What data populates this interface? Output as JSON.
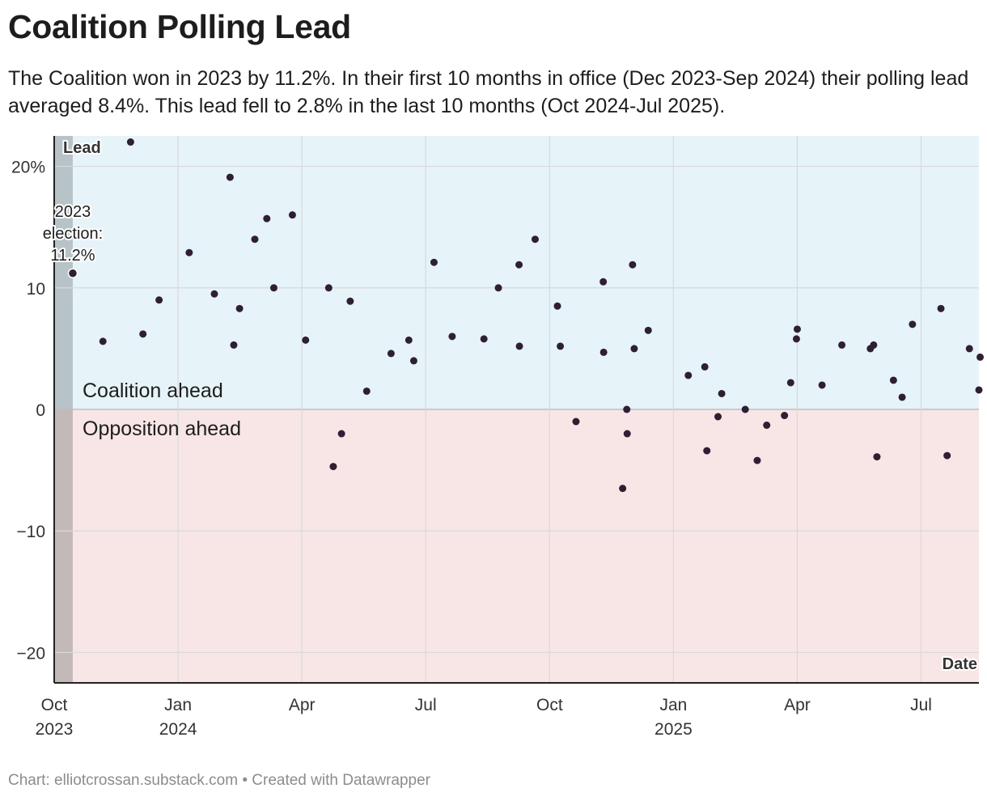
{
  "title": "Coalition Polling Lead",
  "subtitle": "The Coalition won in 2023 by 11.2%. In their first 10 months in office (Dec 2023-Sep 2024) their polling lead averaged 8.4%. This lead fell to 2.8% in the last 10 months (Oct 2024-Jul 2025).",
  "footer": {
    "source": "Chart: elliotcrossan.substack.com",
    "separator": "•",
    "credit": "Created with Datawrapper"
  },
  "colors": {
    "positive_band": "#e6f3f9",
    "negative_band": "#f8e6e6",
    "pre_election_band_top": "#b7c3c6",
    "pre_election_band_bottom": "#c4b9b9",
    "gridline": "#d9d9d9",
    "zero_line": "#bdbdbd",
    "axis": "#222222",
    "point": "#2e1f33"
  },
  "chart_data": {
    "type": "scatter",
    "title": "Coalition Polling Lead",
    "ylabel": "Lead",
    "xlabel": "Date",
    "x_unit": "months since Oct 2023",
    "xlim": [
      0,
      22.4
    ],
    "ylim": [
      -22.5,
      22.5
    ],
    "y_ticks": [
      {
        "value": 20,
        "label": "20%"
      },
      {
        "value": 10,
        "label": "10"
      },
      {
        "value": 0,
        "label": "0"
      },
      {
        "value": -10,
        "label": "−10"
      },
      {
        "value": -20,
        "label": "−20"
      }
    ],
    "x_ticks": [
      {
        "value": 0,
        "label": "Oct",
        "sublabel": "2023"
      },
      {
        "value": 3,
        "label": "Jan",
        "sublabel": "2024"
      },
      {
        "value": 6,
        "label": "Apr",
        "sublabel": ""
      },
      {
        "value": 9,
        "label": "Jul",
        "sublabel": ""
      },
      {
        "value": 12,
        "label": "Oct",
        "sublabel": ""
      },
      {
        "value": 15,
        "label": "Jan",
        "sublabel": "2025"
      },
      {
        "value": 18,
        "label": "Apr",
        "sublabel": ""
      },
      {
        "value": 21,
        "label": "Jul",
        "sublabel": ""
      }
    ],
    "regions": {
      "positive_label": "Coalition ahead",
      "negative_label": "Opposition ahead",
      "pre_election_end": 0.45
    },
    "annotation": {
      "lines": [
        "2023",
        "election:",
        "11.2%"
      ],
      "x": 0.45,
      "y": 11.2
    },
    "series": [
      {
        "name": "Polls",
        "points": [
          {
            "x": 0.45,
            "y": 11.2
          },
          {
            "x": 1.18,
            "y": 5.6
          },
          {
            "x": 1.85,
            "y": 22.0
          },
          {
            "x": 2.15,
            "y": 6.2
          },
          {
            "x": 2.54,
            "y": 9.0
          },
          {
            "x": 3.27,
            "y": 12.9
          },
          {
            "x": 3.88,
            "y": 9.5
          },
          {
            "x": 4.26,
            "y": 19.1
          },
          {
            "x": 4.35,
            "y": 5.3
          },
          {
            "x": 4.49,
            "y": 8.3
          },
          {
            "x": 4.86,
            "y": 14.0
          },
          {
            "x": 5.15,
            "y": 15.7
          },
          {
            "x": 5.32,
            "y": 10.0
          },
          {
            "x": 5.77,
            "y": 16.0
          },
          {
            "x": 6.09,
            "y": 5.7
          },
          {
            "x": 6.65,
            "y": 10.0
          },
          {
            "x": 6.76,
            "y": -4.7
          },
          {
            "x": 6.96,
            "y": -2.0
          },
          {
            "x": 7.17,
            "y": 8.9
          },
          {
            "x": 7.57,
            "y": 1.5
          },
          {
            "x": 8.16,
            "y": 4.6
          },
          {
            "x": 8.59,
            "y": 5.7
          },
          {
            "x": 8.71,
            "y": 4.0
          },
          {
            "x": 9.2,
            "y": 12.1
          },
          {
            "x": 9.64,
            "y": 6.0
          },
          {
            "x": 10.41,
            "y": 5.8
          },
          {
            "x": 10.76,
            "y": 10.0
          },
          {
            "x": 11.26,
            "y": 11.9
          },
          {
            "x": 11.27,
            "y": 5.2
          },
          {
            "x": 11.65,
            "y": 14.0
          },
          {
            "x": 12.19,
            "y": 8.5
          },
          {
            "x": 12.26,
            "y": 5.2
          },
          {
            "x": 12.64,
            "y": -1.0
          },
          {
            "x": 13.3,
            "y": 10.5
          },
          {
            "x": 13.31,
            "y": 4.7
          },
          {
            "x": 13.77,
            "y": -6.5
          },
          {
            "x": 13.87,
            "y": 0.0
          },
          {
            "x": 13.88,
            "y": -2.0
          },
          {
            "x": 14.01,
            "y": 11.9
          },
          {
            "x": 14.05,
            "y": 5.0
          },
          {
            "x": 14.39,
            "y": 6.5
          },
          {
            "x": 15.36,
            "y": 2.8
          },
          {
            "x": 15.76,
            "y": 3.5
          },
          {
            "x": 15.81,
            "y": -3.4
          },
          {
            "x": 16.08,
            "y": -0.6
          },
          {
            "x": 16.17,
            "y": 1.3
          },
          {
            "x": 16.74,
            "y": 0.0
          },
          {
            "x": 17.03,
            "y": -4.2
          },
          {
            "x": 17.26,
            "y": -1.3
          },
          {
            "x": 17.69,
            "y": -0.5
          },
          {
            "x": 17.84,
            "y": 2.2
          },
          {
            "x": 17.98,
            "y": 5.8
          },
          {
            "x": 18.0,
            "y": 6.6
          },
          {
            "x": 18.6,
            "y": 2.0
          },
          {
            "x": 19.08,
            "y": 5.3
          },
          {
            "x": 19.77,
            "y": 5.0
          },
          {
            "x": 19.85,
            "y": 5.3
          },
          {
            "x": 19.93,
            "y": -3.9
          },
          {
            "x": 20.33,
            "y": 2.4
          },
          {
            "x": 20.54,
            "y": 1.0
          },
          {
            "x": 20.79,
            "y": 7.0
          },
          {
            "x": 21.48,
            "y": 8.3
          },
          {
            "x": 21.63,
            "y": -3.8
          },
          {
            "x": 22.17,
            "y": 5.0
          },
          {
            "x": 22.43,
            "y": 4.3
          },
          {
            "x": 22.4,
            "y": 1.6
          }
        ]
      }
    ]
  }
}
